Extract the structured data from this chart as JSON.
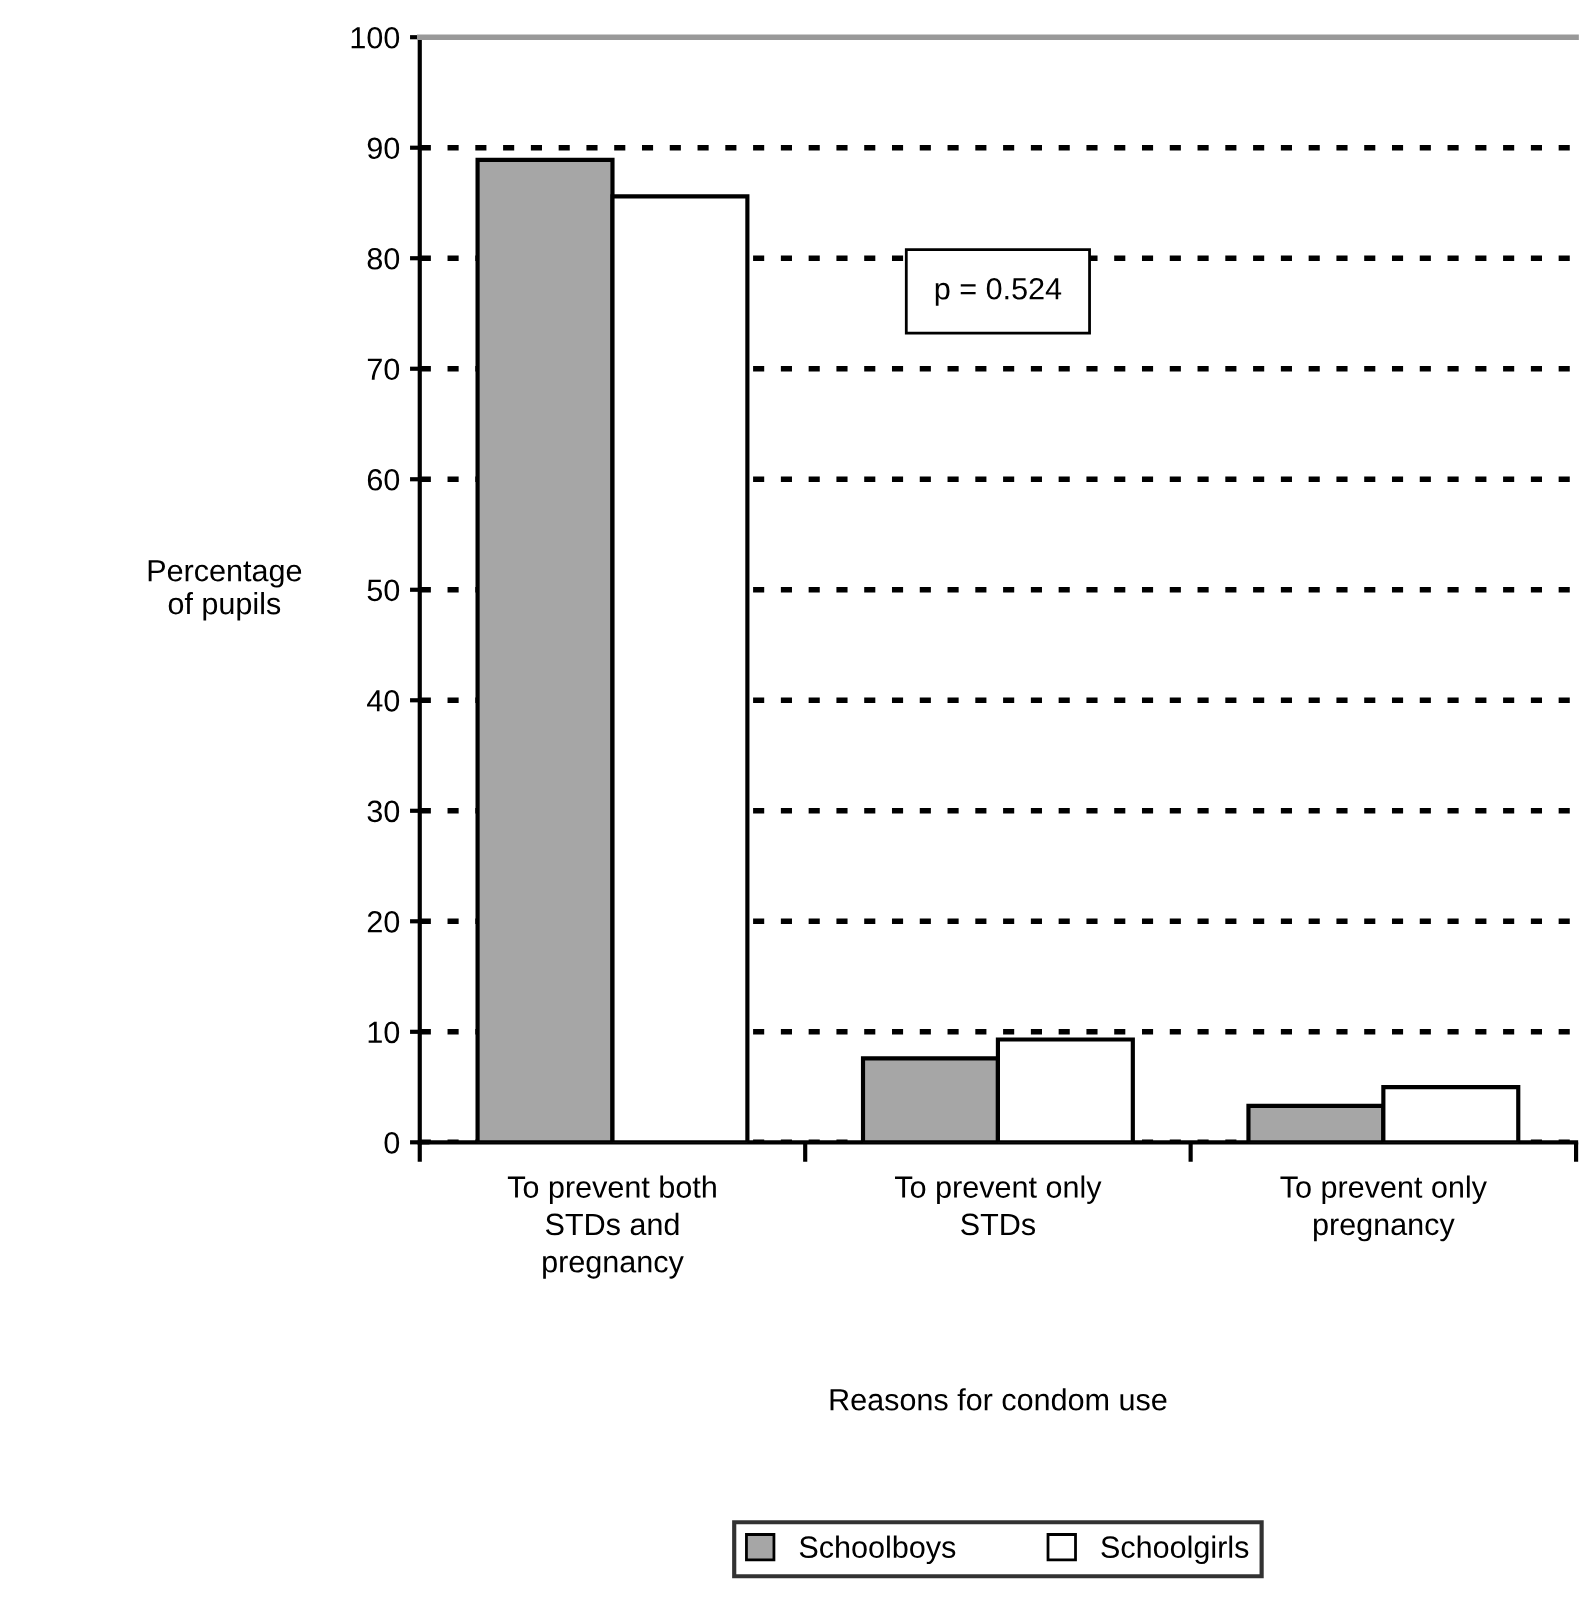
{
  "chart_data": {
    "type": "bar",
    "xlabel": "Reasons for condom use",
    "ylabel": "Percentage\nof pupils",
    "categories": [
      "To prevent both\nSTDs and\npregnancy",
      "To prevent only\nSTDs",
      "To prevent only\npregnancy"
    ],
    "series": [
      {
        "name": "Schoolboys",
        "color": "#a6a6a6",
        "values": [
          88.9,
          7.6,
          3.3
        ]
      },
      {
        "name": "Schoolgirls",
        "color": "#ffffff",
        "values": [
          85.6,
          9.3,
          5.0
        ]
      }
    ],
    "ylim": [
      0,
      100
    ],
    "yticks": [
      0,
      10,
      20,
      30,
      40,
      50,
      60,
      70,
      80,
      90,
      100
    ],
    "grid": "y",
    "line_style": "dotted",
    "legend": "bottom",
    "annotations": [
      "p = 0.524"
    ]
  }
}
